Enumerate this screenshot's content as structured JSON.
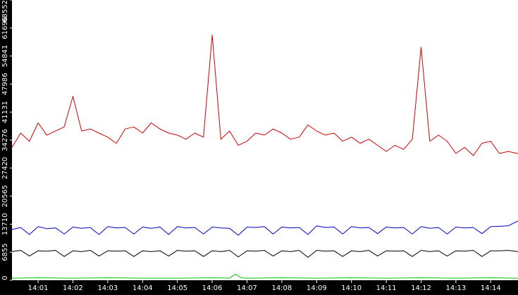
{
  "chart_data": {
    "type": "line",
    "title": "",
    "xlabel": "",
    "ylabel": "",
    "grid": false,
    "legend": "none",
    "ylim": [
      0,
      68552
    ],
    "xlim": [
      "14:00:15",
      "14:14:47"
    ],
    "y_ticks": [
      "0",
      "6855",
      "13710",
      "20565",
      "27420",
      "34276",
      "41131",
      "47986",
      "54841",
      "61696",
      "68552"
    ],
    "x_ticks": [
      "14:01",
      "14:02",
      "14:03",
      "14:04",
      "14:05",
      "14:06",
      "14:07",
      "14:08",
      "14:09",
      "14:10",
      "14:11",
      "14:12",
      "14:13",
      "14:14"
    ],
    "series": [
      {
        "color": "#d00000",
        "x": [
          "14:00:15",
          "14:00:30",
          "14:00:45",
          "14:01:00",
          "14:01:15",
          "14:01:30",
          "14:01:45",
          "14:02:00",
          "14:02:15",
          "14:02:30",
          "14:02:45",
          "14:03:00",
          "14:03:15",
          "14:03:30",
          "14:03:45",
          "14:04:00",
          "14:04:15",
          "14:04:30",
          "14:04:45",
          "14:05:00",
          "14:05:15",
          "14:05:30",
          "14:05:45",
          "14:06:00",
          "14:06:15",
          "14:06:30",
          "14:06:45",
          "14:07:00",
          "14:07:15",
          "14:07:30",
          "14:07:45",
          "14:08:00",
          "14:08:15",
          "14:08:30",
          "14:08:45",
          "14:09:00",
          "14:09:15",
          "14:09:30",
          "14:09:45",
          "14:10:00",
          "14:10:15",
          "14:10:30",
          "14:10:45",
          "14:11:00",
          "14:11:15",
          "14:11:30",
          "14:11:45",
          "14:12:00",
          "14:12:15",
          "14:12:30",
          "14:12:45",
          "14:13:00",
          "14:13:15",
          "14:13:30",
          "14:13:45",
          "14:14:00",
          "14:14:15",
          "14:14:30",
          "14:14:47"
        ],
        "values": [
          32500,
          36000,
          34000,
          38500,
          35500,
          36500,
          37500,
          45000,
          36500,
          37000,
          36000,
          35000,
          33500,
          37000,
          37500,
          36000,
          38500,
          37000,
          36000,
          35500,
          34500,
          36000,
          35000,
          60000,
          34500,
          36500,
          33000,
          34000,
          36000,
          35500,
          37000,
          36000,
          34500,
          35000,
          38000,
          36500,
          35500,
          36000,
          34000,
          35000,
          33500,
          34500,
          33000,
          31500,
          33000,
          32000,
          34500,
          57000,
          34000,
          35500,
          34000,
          31000,
          32500,
          30500,
          33500,
          34000,
          31000,
          31500,
          31000
        ]
      },
      {
        "color": "#0000c8",
        "x": [
          "14:00:15",
          "14:00:30",
          "14:00:45",
          "14:01:00",
          "14:01:15",
          "14:01:30",
          "14:01:45",
          "14:02:00",
          "14:02:15",
          "14:02:30",
          "14:02:45",
          "14:03:00",
          "14:03:15",
          "14:03:30",
          "14:03:45",
          "14:04:00",
          "14:04:15",
          "14:04:30",
          "14:04:45",
          "14:05:00",
          "14:05:15",
          "14:05:30",
          "14:05:45",
          "14:06:00",
          "14:06:15",
          "14:06:30",
          "14:06:45",
          "14:07:00",
          "14:07:15",
          "14:07:30",
          "14:07:45",
          "14:08:00",
          "14:08:15",
          "14:08:30",
          "14:08:45",
          "14:09:00",
          "14:09:15",
          "14:09:30",
          "14:09:45",
          "14:10:00",
          "14:10:15",
          "14:10:30",
          "14:10:45",
          "14:11:00",
          "14:11:15",
          "14:11:30",
          "14:11:45",
          "14:12:00",
          "14:12:15",
          "14:12:30",
          "14:12:45",
          "14:13:00",
          "14:13:15",
          "14:13:30",
          "14:13:45",
          "14:14:00",
          "14:14:15",
          "14:14:30",
          "14:14:47"
        ],
        "values": [
          12400,
          12900,
          11200,
          13100,
          12600,
          12800,
          11300,
          13000,
          12700,
          12900,
          11200,
          13100,
          12800,
          12900,
          11300,
          13000,
          12700,
          13000,
          11200,
          13100,
          12800,
          12900,
          11300,
          13000,
          12800,
          12700,
          11000,
          13000,
          12900,
          13100,
          11300,
          13000,
          12800,
          12900,
          11200,
          13300,
          12900,
          13000,
          11300,
          13100,
          12800,
          12900,
          11400,
          13000,
          12800,
          12900,
          11300,
          13100,
          12700,
          12900,
          11300,
          13000,
          12800,
          12900,
          11400,
          13100,
          13200,
          13300,
          14500
        ]
      },
      {
        "color": "#000000",
        "x": [
          "14:00:15",
          "14:00:30",
          "14:00:45",
          "14:01:00",
          "14:01:15",
          "14:01:30",
          "14:01:45",
          "14:02:00",
          "14:02:15",
          "14:02:30",
          "14:02:45",
          "14:03:00",
          "14:03:15",
          "14:03:30",
          "14:03:45",
          "14:04:00",
          "14:04:15",
          "14:04:30",
          "14:04:45",
          "14:05:00",
          "14:05:15",
          "14:05:30",
          "14:05:45",
          "14:06:00",
          "14:06:15",
          "14:06:30",
          "14:06:45",
          "14:07:00",
          "14:07:15",
          "14:07:30",
          "14:07:45",
          "14:08:00",
          "14:08:15",
          "14:08:30",
          "14:08:45",
          "14:09:00",
          "14:09:15",
          "14:09:30",
          "14:09:45",
          "14:10:00",
          "14:10:15",
          "14:10:30",
          "14:10:45",
          "14:11:00",
          "14:11:15",
          "14:11:30",
          "14:11:45",
          "14:12:00",
          "14:12:15",
          "14:12:30",
          "14:12:45",
          "14:13:00",
          "14:13:15",
          "14:13:30",
          "14:13:45",
          "14:14:00",
          "14:14:15",
          "14:14:30",
          "14:14:47"
        ],
        "values": [
          7000,
          7300,
          5900,
          7200,
          7100,
          7300,
          5800,
          7200,
          7000,
          7300,
          5900,
          7200,
          7100,
          7200,
          5800,
          7200,
          7000,
          7200,
          5900,
          7300,
          7100,
          7200,
          5800,
          7200,
          7000,
          7300,
          5700,
          7200,
          7100,
          7300,
          5900,
          7200,
          7000,
          7300,
          5600,
          7300,
          7100,
          7200,
          5800,
          7200,
          7000,
          7300,
          5900,
          7200,
          7100,
          7200,
          5800,
          7300,
          7000,
          7200,
          5900,
          7200,
          7100,
          7300,
          5800,
          7200,
          7200,
          7300,
          7000
        ]
      },
      {
        "color": "#00c800",
        "x": [
          "14:00:15",
          "14:01:00",
          "14:02:00",
          "14:03:00",
          "14:04:00",
          "14:05:00",
          "14:06:00",
          "14:06:30",
          "14:06:40",
          "14:06:50",
          "14:07:00",
          "14:08:00",
          "14:09:00",
          "14:10:00",
          "14:11:00",
          "14:12:00",
          "14:13:00",
          "14:14:00",
          "14:14:47"
        ],
        "values": [
          500,
          600,
          500,
          600,
          500,
          500,
          600,
          500,
          1500,
          600,
          500,
          600,
          500,
          600,
          500,
          600,
          500,
          600,
          500
        ]
      }
    ]
  }
}
